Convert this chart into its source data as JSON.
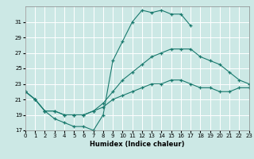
{
  "xlabel": "Humidex (Indice chaleur)",
  "xlim": [
    0,
    23
  ],
  "ylim": [
    17,
    33
  ],
  "yticks": [
    17,
    19,
    21,
    23,
    25,
    27,
    29,
    31
  ],
  "xticks": [
    0,
    1,
    2,
    3,
    4,
    5,
    6,
    7,
    8,
    9,
    10,
    11,
    12,
    13,
    14,
    15,
    16,
    17,
    18,
    19,
    20,
    21,
    22,
    23
  ],
  "bg_color": "#cce8e5",
  "grid_color": "#ffffff",
  "line_color": "#1a7a6e",
  "lines": [
    {
      "x": [
        0,
        1,
        2,
        3,
        4,
        5,
        6,
        7,
        8,
        9,
        10,
        11,
        12,
        13,
        14,
        15,
        16,
        17
      ],
      "y": [
        22,
        21,
        19.5,
        18.5,
        18,
        17.5,
        17.5,
        17,
        19,
        26,
        28.5,
        31,
        32.5,
        32.2,
        32.5,
        32,
        32,
        30.5
      ]
    },
    {
      "x": [
        0,
        1,
        2,
        3,
        4,
        5,
        6,
        7,
        8,
        9,
        10,
        11,
        12,
        13,
        14,
        15,
        16,
        17,
        18,
        19,
        20,
        21,
        22,
        23
      ],
      "y": [
        22,
        21,
        19.5,
        19.5,
        19,
        19,
        19,
        19.5,
        20.5,
        22,
        23.5,
        24.5,
        25.5,
        26.5,
        27,
        27.5,
        27.5,
        27.5,
        26.5,
        26,
        25.5,
        24.5,
        23.5,
        23
      ]
    },
    {
      "x": [
        0,
        1,
        2,
        3,
        4,
        5,
        6,
        7,
        8,
        9,
        10,
        11,
        12,
        13,
        14,
        15,
        16,
        17,
        18,
        19,
        20,
        21,
        22,
        23
      ],
      "y": [
        22,
        21,
        19.5,
        19.5,
        19,
        19,
        19,
        19.5,
        20,
        21,
        21.5,
        22,
        22.5,
        23,
        23,
        23.5,
        23.5,
        23,
        22.5,
        22.5,
        22,
        22,
        22.5,
        22.5
      ]
    }
  ]
}
